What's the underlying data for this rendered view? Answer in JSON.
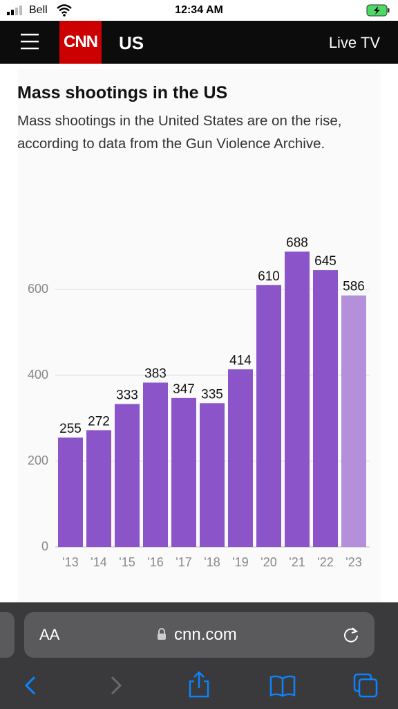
{
  "status_bar": {
    "carrier": "Bell",
    "time": "12:34 AM"
  },
  "nav": {
    "logo": "CNN",
    "section": "US",
    "live": "Live TV"
  },
  "browser": {
    "text_size": "AA",
    "url": "cnn.com"
  },
  "chart_data": {
    "type": "bar",
    "title": "Mass shootings in the US",
    "subtitle": "Mass shootings in the United States are on the rise, according to data from the Gun Violence Archive.",
    "categories": [
      "'13",
      "'14",
      "'15",
      "'16",
      "'17",
      "'18",
      "'19",
      "'20",
      "'21",
      "'22",
      "'23"
    ],
    "values": [
      255,
      272,
      333,
      383,
      347,
      335,
      414,
      610,
      688,
      645,
      586
    ],
    "colors": [
      "#8b55c9",
      "#8b55c9",
      "#8b55c9",
      "#8b55c9",
      "#8b55c9",
      "#8b55c9",
      "#8b55c9",
      "#8b55c9",
      "#8b55c9",
      "#8b55c9",
      "#b390d9"
    ],
    "ylim": [
      0,
      700
    ],
    "yticks": [
      0,
      200,
      400,
      600
    ],
    "grid": true
  }
}
